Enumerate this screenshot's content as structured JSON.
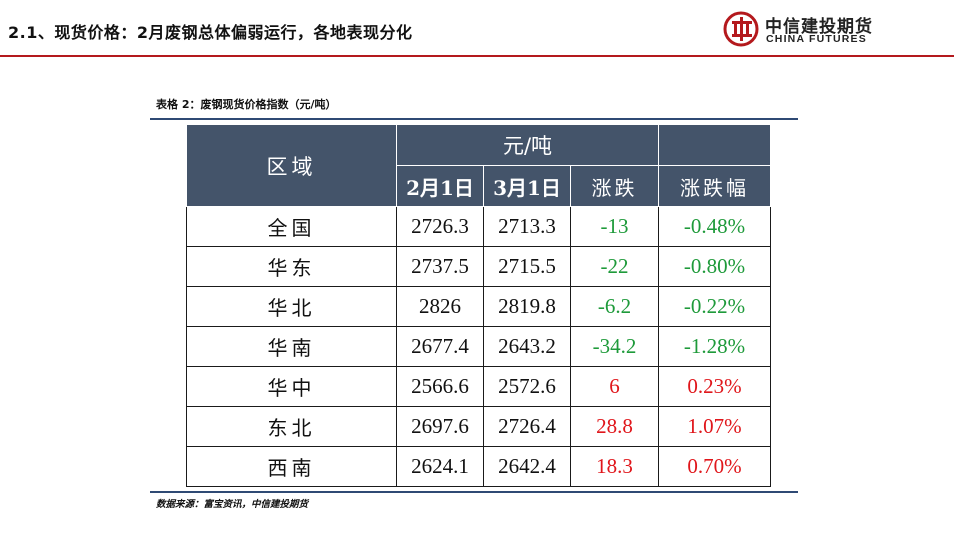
{
  "page": {
    "title": "2.1、现货价格：2月废钢总体偏弱运行，各地表现分化"
  },
  "logo": {
    "cn": "中信建投期货",
    "en": "CHINA FUTURES",
    "color": "#b4191d"
  },
  "table": {
    "caption": "表格 2：废钢现货价格指数（元/吨）",
    "header": {
      "region": "区域",
      "unit": "元/吨",
      "col_feb": "2月1日",
      "col_mar": "3月1日",
      "col_change": "涨跌",
      "col_pct": "涨跌幅"
    },
    "rows": [
      {
        "region": "全国",
        "feb": "2726.3",
        "mar": "2713.3",
        "change": "-13",
        "pct": "-0.48%",
        "dir": "down"
      },
      {
        "region": "华东",
        "feb": "2737.5",
        "mar": "2715.5",
        "change": "-22",
        "pct": "-0.80%",
        "dir": "down"
      },
      {
        "region": "华北",
        "feb": "2826",
        "mar": "2819.8",
        "change": "-6.2",
        "pct": "-0.22%",
        "dir": "down"
      },
      {
        "region": "华南",
        "feb": "2677.4",
        "mar": "2643.2",
        "change": "-34.2",
        "pct": "-1.28%",
        "dir": "down"
      },
      {
        "region": "华中",
        "feb": "2566.6",
        "mar": "2572.6",
        "change": "6",
        "pct": "0.23%",
        "dir": "up"
      },
      {
        "region": "东北",
        "feb": "2697.6",
        "mar": "2726.4",
        "change": "28.8",
        "pct": "1.07%",
        "dir": "up"
      },
      {
        "region": "西南",
        "feb": "2624.1",
        "mar": "2642.4",
        "change": "18.3",
        "pct": "0.70%",
        "dir": "up"
      }
    ],
    "source": "数据来源：富宝资讯，中信建投期货"
  },
  "colors": {
    "header_bg": "#44546a",
    "down": "#1e9a3a",
    "up": "#e0161b",
    "rule": "#2f4a74"
  }
}
